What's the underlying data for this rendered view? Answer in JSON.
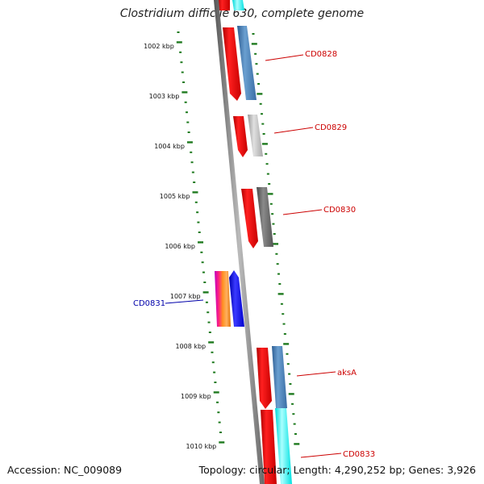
{
  "title": "Clostridium difficile 630, complete genome",
  "accession": "Accession: NC_009089",
  "summary": "Topology: circular; Length: 4,290,252 bp; Genes: 3,926",
  "ticks": [
    "1002 kbp",
    "1003 kbp",
    "1004 kbp",
    "1005 kbp",
    "1006 kbp",
    "1007 kbp",
    "1008 kbp",
    "1009 kbp",
    "1010 kbp"
  ],
  "genes": [
    {
      "label": "CD0828",
      "color": "#cc0000"
    },
    {
      "label": "CD0829",
      "color": "#cc0000"
    },
    {
      "label": "CD0830",
      "color": "#cc0000"
    },
    {
      "label": "CD0831",
      "color": "#0000aa"
    },
    {
      "label": "aksA",
      "color": "#cc0000"
    },
    {
      "label": "CD0833",
      "color": "#cc0000"
    }
  ],
  "colors": {
    "forward_gene": "#ff0000",
    "reverse_gene": "#0000ff",
    "cog_blue": "#4a7fb5",
    "cog_gray": "#b8b8b8",
    "cog_dark": "#6a6a6a",
    "cog_cyan": "#00ffff",
    "backbone": "#808080",
    "tick": "#1e7a1e"
  }
}
